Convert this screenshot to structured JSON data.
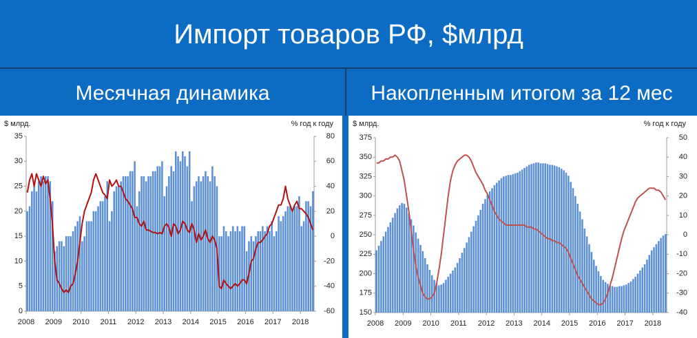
{
  "title": "Импорт товаров РФ, $млрд",
  "chart_data": [
    {
      "type": "bar",
      "title": "Месячная динамика",
      "y_label": "$ млрд.",
      "y2_label": "% год к году",
      "categories": [
        "2008",
        null,
        null,
        null,
        null,
        null,
        null,
        null,
        null,
        null,
        null,
        null,
        "2009",
        null,
        null,
        null,
        null,
        null,
        null,
        null,
        null,
        null,
        null,
        null,
        "2010",
        null,
        null,
        null,
        null,
        null,
        null,
        null,
        null,
        null,
        null,
        null,
        "2011",
        null,
        null,
        null,
        null,
        null,
        null,
        null,
        null,
        null,
        null,
        null,
        "2012",
        null,
        null,
        null,
        null,
        null,
        null,
        null,
        null,
        null,
        null,
        null,
        "2013",
        null,
        null,
        null,
        null,
        null,
        null,
        null,
        null,
        null,
        null,
        null,
        "2014",
        null,
        null,
        null,
        null,
        null,
        null,
        null,
        null,
        null,
        null,
        null,
        "2015",
        null,
        null,
        null,
        null,
        null,
        null,
        null,
        null,
        null,
        null,
        null,
        "2016",
        null,
        null,
        null,
        null,
        null,
        null,
        null,
        null,
        null,
        null,
        null,
        "2017",
        null,
        null,
        null,
        null,
        null,
        null,
        null,
        null,
        null,
        null,
        null,
        "2018",
        null,
        null,
        null,
        null,
        null
      ],
      "series": [
        {
          "type": "bar",
          "color": "#5b8fd6",
          "values": [
            20,
            21,
            24,
            25,
            24,
            26,
            27,
            26,
            27,
            27,
            26,
            22,
            12,
            13,
            14,
            14,
            13,
            15,
            15,
            15,
            16,
            17,
            18,
            19,
            14,
            15,
            18,
            18,
            18,
            20,
            20,
            21,
            22,
            22,
            23,
            26,
            18,
            20,
            24,
            25,
            25,
            26,
            27,
            27,
            27,
            28,
            28,
            30,
            21,
            24,
            27,
            27,
            26,
            27,
            27,
            28,
            28,
            29,
            29,
            30,
            23,
            25,
            27,
            29,
            28,
            32,
            31,
            30,
            32,
            31,
            29,
            32,
            22,
            25,
            26,
            27,
            26,
            27,
            28,
            27,
            26,
            29,
            27,
            25,
            15,
            15,
            17,
            16,
            15,
            16,
            17,
            16,
            17,
            16,
            17,
            17,
            12,
            14,
            15,
            14,
            15,
            16,
            16,
            17,
            16,
            17,
            16,
            18,
            15,
            16,
            19,
            18,
            19,
            20,
            21,
            21,
            20,
            21,
            21,
            23,
            17,
            18,
            22,
            22,
            21,
            24
          ]
        },
        {
          "type": "line",
          "axis": "y2",
          "color": "#b01010",
          "values": [
            35,
            45,
            50,
            40,
            50,
            45,
            40,
            48,
            42,
            45,
            30,
            10,
            -20,
            -35,
            -38,
            -42,
            -45,
            -43,
            -45,
            -40,
            -38,
            -30,
            -20,
            -5,
            10,
            20,
            25,
            30,
            35,
            45,
            50,
            45,
            40,
            35,
            33,
            30,
            45,
            40,
            42,
            45,
            40,
            40,
            35,
            30,
            28,
            25,
            22,
            15,
            15,
            10,
            8,
            12,
            5,
            5,
            4,
            3,
            3,
            2,
            3,
            2,
            8,
            10,
            7,
            0,
            10,
            8,
            2,
            5,
            12,
            10,
            5,
            3,
            10,
            5,
            -5,
            2,
            -3,
            0,
            5,
            -2,
            -5,
            0,
            -3,
            -10,
            -40,
            -42,
            -35,
            -38,
            -40,
            -42,
            -40,
            -38,
            -40,
            -38,
            -35,
            -35,
            -38,
            -30,
            -20,
            -18,
            -10,
            -5,
            -5,
            -3,
            0,
            2,
            8,
            10,
            15,
            20,
            25,
            25,
            30,
            40,
            30,
            25,
            20,
            25,
            28,
            22,
            22,
            20,
            18,
            15,
            10,
            5
          ]
        }
      ],
      "ylim": [
        0,
        35
      ],
      "yticks": [
        0,
        5,
        10,
        15,
        20,
        25,
        30,
        35
      ],
      "y2lim": [
        -60,
        80
      ],
      "y2ticks": [
        -60,
        -40,
        -20,
        0,
        20,
        40,
        60,
        80
      ],
      "grid": false
    },
    {
      "type": "bar",
      "title": "Накопленным итогом за 12 мес",
      "y_label": "$ млрд.",
      "y2_label": "% год к году",
      "categories": [
        "2008",
        null,
        null,
        null,
        null,
        null,
        null,
        null,
        null,
        null,
        null,
        null,
        "2009",
        null,
        null,
        null,
        null,
        null,
        null,
        null,
        null,
        null,
        null,
        null,
        "2010",
        null,
        null,
        null,
        null,
        null,
        null,
        null,
        null,
        null,
        null,
        null,
        "2011",
        null,
        null,
        null,
        null,
        null,
        null,
        null,
        null,
        null,
        null,
        null,
        "2012",
        null,
        null,
        null,
        null,
        null,
        null,
        null,
        null,
        null,
        null,
        null,
        "2013",
        null,
        null,
        null,
        null,
        null,
        null,
        null,
        null,
        null,
        null,
        null,
        "2014",
        null,
        null,
        null,
        null,
        null,
        null,
        null,
        null,
        null,
        null,
        null,
        "2015",
        null,
        null,
        null,
        null,
        null,
        null,
        null,
        null,
        null,
        null,
        null,
        "2016",
        null,
        null,
        null,
        null,
        null,
        null,
        null,
        null,
        null,
        null,
        null,
        "2017",
        null,
        null,
        null,
        null,
        null,
        null,
        null,
        null,
        null,
        null,
        null,
        "2018",
        null,
        null,
        null,
        null,
        null
      ],
      "series": [
        {
          "type": "bar",
          "color": "#5b8fd6",
          "values": [
            230,
            236,
            242,
            248,
            254,
            260,
            266,
            272,
            278,
            284,
            288,
            291,
            290,
            285,
            278,
            270,
            262,
            253,
            245,
            237,
            229,
            220,
            212,
            205,
            198,
            192,
            188,
            185,
            186,
            188,
            192,
            196,
            200,
            204,
            208,
            214,
            220,
            227,
            233,
            240,
            247,
            254,
            261,
            268,
            275,
            282,
            290,
            296,
            302,
            306,
            310,
            314,
            317,
            320,
            323,
            325,
            326,
            327,
            327,
            328,
            329,
            330,
            332,
            334,
            336,
            338,
            340,
            341,
            342,
            343,
            343,
            342,
            342,
            342,
            341,
            340,
            340,
            339,
            338,
            337,
            335,
            333,
            330,
            326,
            318,
            310,
            300,
            290,
            280,
            270,
            258,
            248,
            238,
            228,
            218,
            210,
            203,
            197,
            192,
            189,
            187,
            185,
            184,
            183,
            183,
            184,
            184,
            185,
            186,
            188,
            190,
            193,
            196,
            200,
            204,
            208,
            212,
            218,
            224,
            230,
            234,
            238,
            242,
            246,
            249,
            251
          ]
        },
        {
          "type": "line",
          "axis": "y2",
          "color": "#c0504d",
          "values": [
            37,
            37,
            38,
            38,
            39,
            39,
            40,
            40,
            41,
            40,
            38,
            33,
            28,
            20,
            12,
            2,
            -8,
            -16,
            -22,
            -26,
            -30,
            -32,
            -33,
            -33,
            -32,
            -30,
            -25,
            -18,
            -10,
            0,
            10,
            20,
            28,
            33,
            36,
            38,
            39,
            40,
            41,
            41,
            40,
            38,
            35,
            32,
            30,
            28,
            26,
            23,
            21,
            18,
            15,
            12,
            10,
            8,
            7,
            6,
            5,
            5,
            5,
            5,
            5,
            5,
            5,
            5,
            5,
            4,
            4,
            4,
            3,
            3,
            2,
            1,
            0,
            -1,
            -2,
            -2,
            -3,
            -3,
            -4,
            -4,
            -5,
            -6,
            -7,
            -9,
            -12,
            -15,
            -18,
            -21,
            -23,
            -25,
            -27,
            -29,
            -31,
            -33,
            -34,
            -35,
            -36,
            -36,
            -35,
            -33,
            -30,
            -26,
            -22,
            -17,
            -12,
            -7,
            -2,
            2,
            5,
            8,
            11,
            14,
            17,
            19,
            20,
            21,
            22,
            23,
            24,
            24,
            24,
            23,
            23,
            22,
            20,
            18
          ]
        }
      ],
      "ylim": [
        150,
        375
      ],
      "yticks": [
        150,
        175,
        200,
        225,
        250,
        275,
        300,
        325,
        350,
        375
      ],
      "y2lim": [
        -40,
        50
      ],
      "y2ticks": [
        -40,
        -30,
        -20,
        -10,
        0,
        10,
        20,
        30,
        40,
        50
      ],
      "grid": false
    }
  ]
}
